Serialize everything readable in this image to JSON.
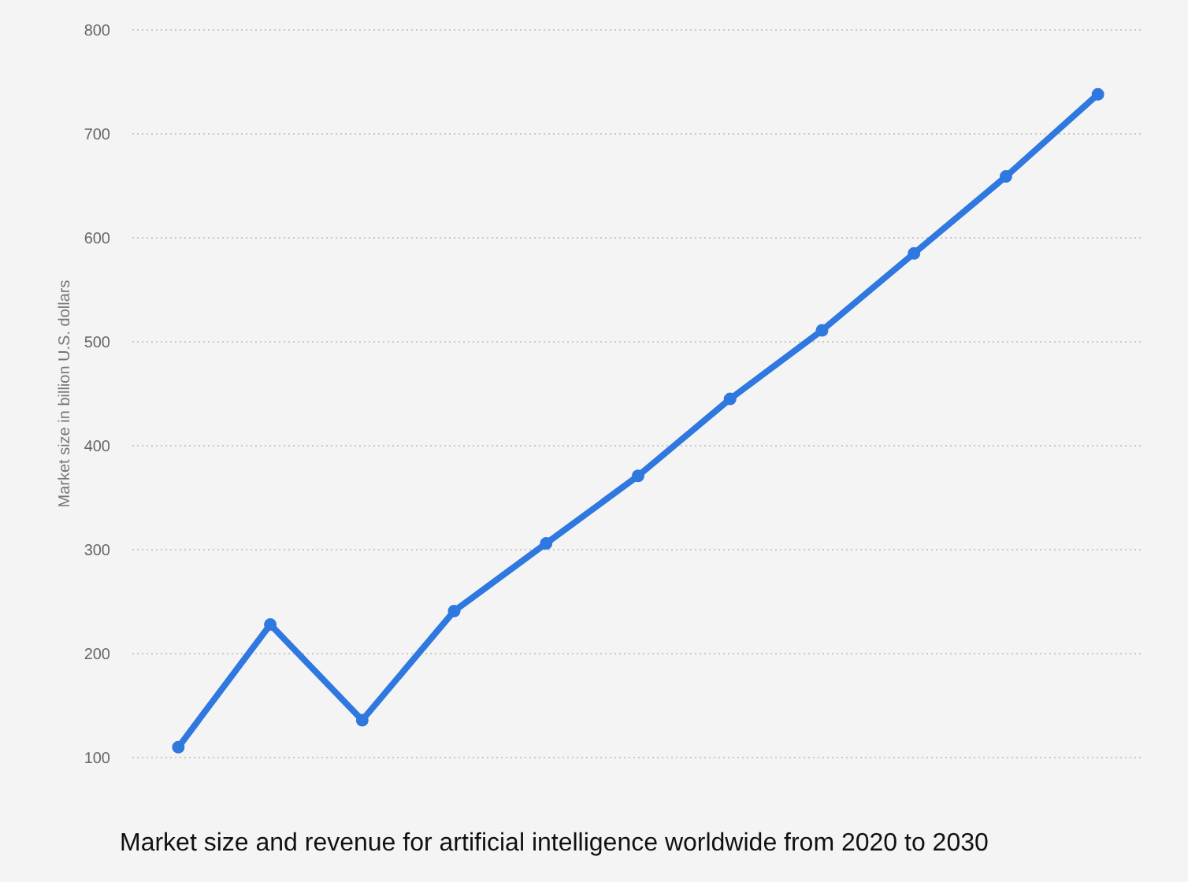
{
  "chart_data": {
    "type": "line",
    "title": "Market size and revenue for artificial intelligence worldwide from 2020 to 2030",
    "ylabel": "Market size in billion U.S. dollars",
    "categories": [
      null,
      null,
      null,
      null,
      null,
      null,
      null,
      null,
      null,
      null,
      null
    ],
    "series": [
      {
        "color": "#2f78e0",
        "values": [
          110,
          228,
          136,
          241,
          306,
          371,
          445,
          511,
          585,
          659,
          738
        ]
      }
    ],
    "ylim": [
      100,
      800
    ],
    "yticks": [
      100,
      200,
      300,
      400,
      500,
      600,
      700,
      800
    ],
    "grid": "y",
    "marker": "circle",
    "line_style": "solid",
    "tick_labels": "y"
  }
}
